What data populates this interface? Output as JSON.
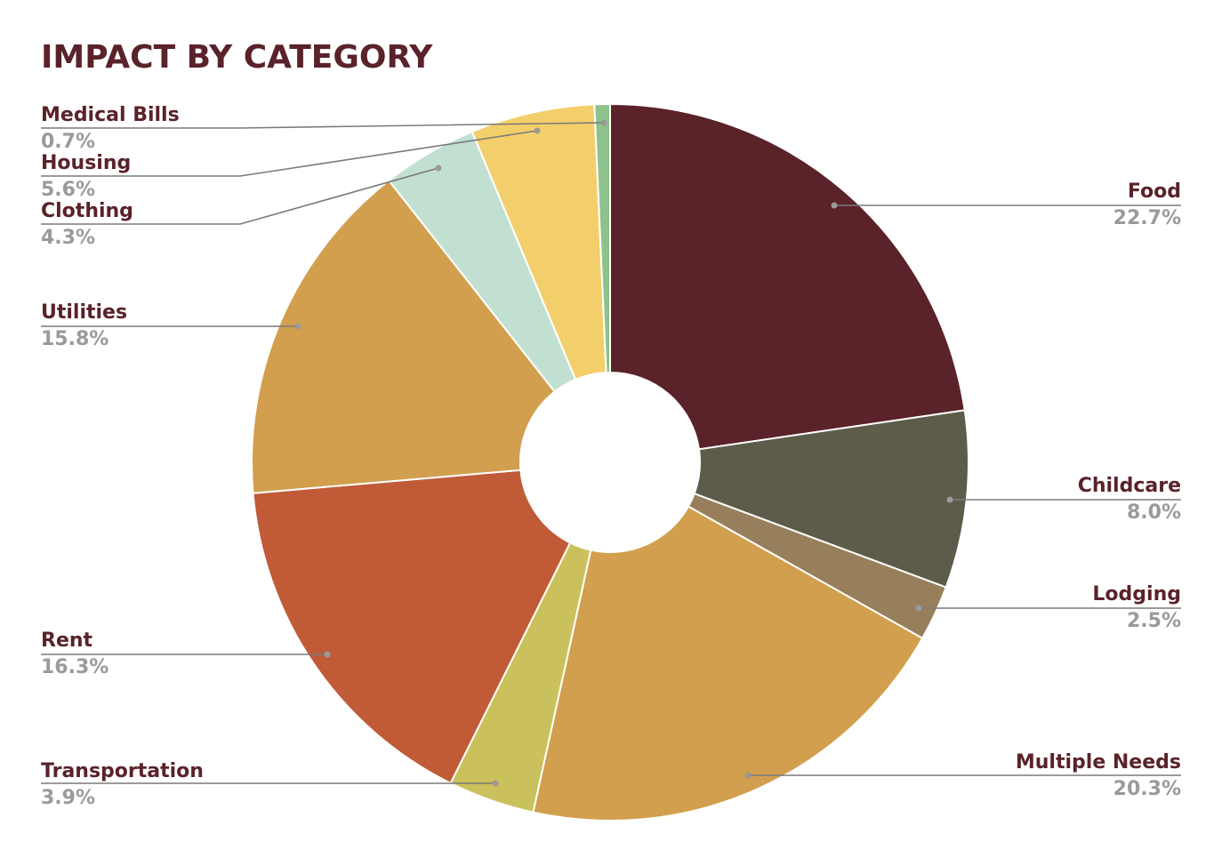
{
  "chart_data": {
    "type": "pie",
    "title": "IMPACT BY CATEGORY",
    "donut": true,
    "start_angle_deg": 0,
    "direction": "clockwise",
    "legend": "none",
    "slices": [
      {
        "label": "Food",
        "value": 22.7,
        "value_label": "22.7%",
        "color": "#5a2229"
      },
      {
        "label": "Childcare",
        "value": 8.0,
        "value_label": "8.0%",
        "color": "#5d5c4a"
      },
      {
        "label": "Lodging",
        "value": 2.5,
        "value_label": "2.5%",
        "color": "#977f5b"
      },
      {
        "label": "Multiple Needs",
        "value": 20.3,
        "value_label": "20.3%",
        "color": "#d29f4e"
      },
      {
        "label": "Transportation",
        "value": 3.9,
        "value_label": "3.9%",
        "color": "#cbc15c"
      },
      {
        "label": "Rent",
        "value": 16.3,
        "value_label": "16.3%",
        "color": "#c05a37"
      },
      {
        "label": "Utilities",
        "value": 15.8,
        "value_label": "15.8%",
        "color": "#d29f4e"
      },
      {
        "label": "Clothing",
        "value": 4.3,
        "value_label": "4.3%",
        "color": "#c1e0d1"
      },
      {
        "label": "Housing",
        "value": 5.6,
        "value_label": "5.6%",
        "color": "#f3cf6b"
      },
      {
        "label": "Medical Bills",
        "value": 0.7,
        "value_label": "0.7%",
        "color": "#8ec28d"
      }
    ]
  }
}
